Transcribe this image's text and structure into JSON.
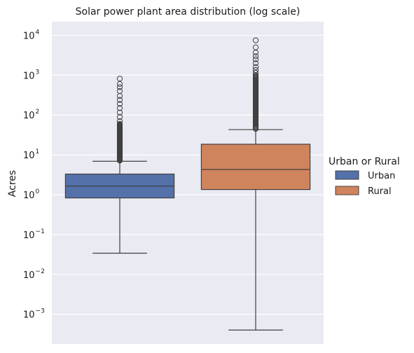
{
  "chart_data": {
    "type": "box",
    "title": "Solar power plant area distribution (log scale)",
    "xlabel": "",
    "ylabel": "Acres",
    "y_scale": "log",
    "ylim": [
      0.00018,
      22000
    ],
    "y_ticks": [
      {
        "base": "10",
        "exp": "4",
        "value": 10000
      },
      {
        "base": "10",
        "exp": "3",
        "value": 1000
      },
      {
        "base": "10",
        "exp": "2",
        "value": 100
      },
      {
        "base": "10",
        "exp": "1",
        "value": 10
      },
      {
        "base": "10",
        "exp": "0",
        "value": 1
      },
      {
        "base": "10",
        "exp": "−1",
        "value": 0.1
      },
      {
        "base": "10",
        "exp": "−2",
        "value": 0.01
      },
      {
        "base": "10",
        "exp": "−3",
        "value": 0.001
      }
    ],
    "grid": true,
    "legend": {
      "title": "Urban or Rural",
      "placement": "right"
    },
    "series": [
      {
        "name": "Urban",
        "color": "#5471aa",
        "whisker_low": 0.034,
        "q1": 0.83,
        "median": 1.65,
        "q3": 3.3,
        "whisker_high": 6.9,
        "outlier_range": [
          7.2,
          60
        ],
        "outliers": [
          70,
          90,
          115,
          150,
          190,
          240,
          300,
          400,
          500,
          600,
          820
        ]
      },
      {
        "name": "Rural",
        "color": "#d0845c",
        "whisker_low": 0.0004,
        "q1": 1.35,
        "median": 4.3,
        "q3": 18.5,
        "whisker_high": 43,
        "outlier_range": [
          45,
          1000
        ],
        "outliers": [
          1150,
          1350,
          1600,
          2000,
          2500,
          3000,
          3700,
          5000,
          7500
        ]
      }
    ]
  }
}
